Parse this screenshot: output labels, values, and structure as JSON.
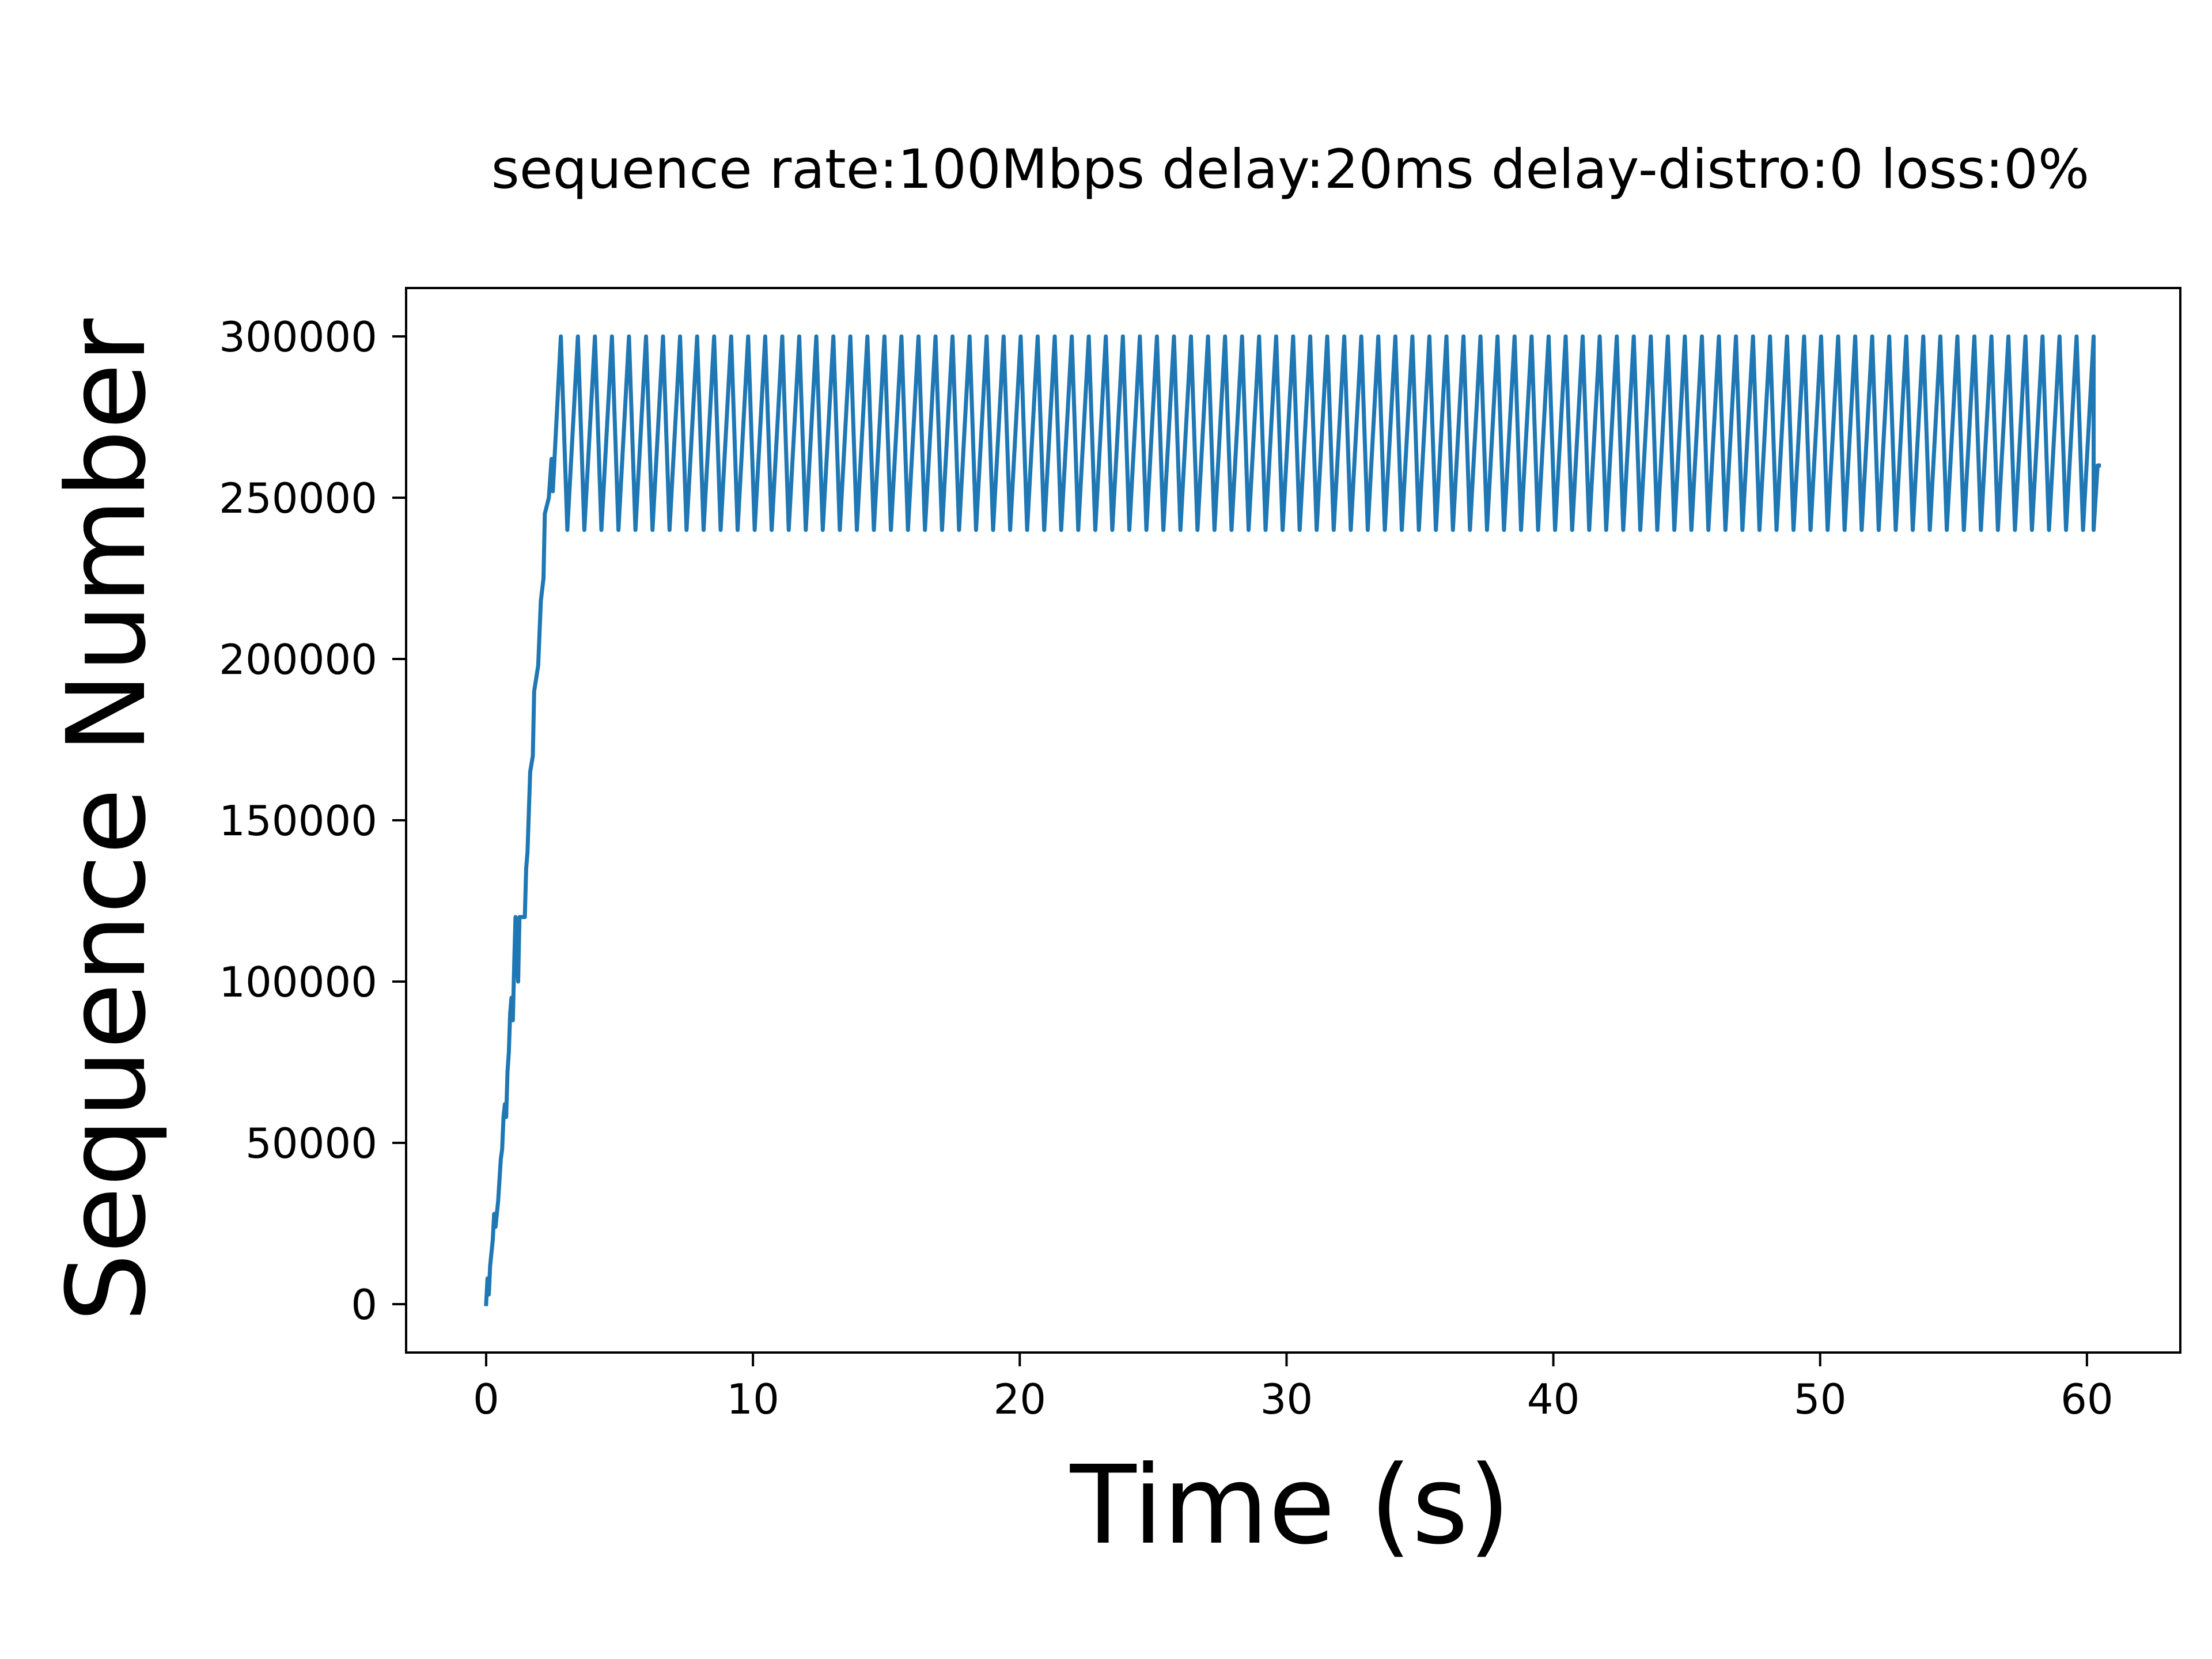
{
  "chart_data": {
    "type": "line",
    "title": "sequence  rate:100Mbps delay:20ms delay-distro:0 loss:0%",
    "xlabel": "Time (s)",
    "ylabel": "Sequence Number",
    "xlim": [
      -3,
      63.5
    ],
    "ylim": [
      -15000,
      315000
    ],
    "x_ticks": [
      0,
      10,
      20,
      30,
      40,
      50,
      60
    ],
    "y_ticks": [
      0,
      50000,
      100000,
      150000,
      200000,
      250000,
      300000
    ],
    "x_tick_labels": [
      "0",
      "10",
      "20",
      "30",
      "40",
      "50",
      "60"
    ],
    "y_tick_labels": [
      "0",
      "50000",
      "100000",
      "150000",
      "200000",
      "250000",
      "300000"
    ],
    "grid": false,
    "legend": "none",
    "series": [
      {
        "color": "#1f77b4",
        "ramp_points": [
          [
            0.0,
            0
          ],
          [
            0.05,
            8000
          ],
          [
            0.1,
            3000
          ],
          [
            0.15,
            12000
          ],
          [
            0.25,
            20000
          ],
          [
            0.3,
            28000
          ],
          [
            0.35,
            24000
          ],
          [
            0.45,
            32000
          ],
          [
            0.55,
            45000
          ],
          [
            0.6,
            48000
          ],
          [
            0.65,
            58000
          ],
          [
            0.7,
            62000
          ],
          [
            0.75,
            58000
          ],
          [
            0.8,
            72000
          ],
          [
            0.85,
            78000
          ],
          [
            0.9,
            90000
          ],
          [
            0.95,
            95000
          ],
          [
            1.0,
            88000
          ],
          [
            1.05,
            105000
          ],
          [
            1.1,
            120000
          ],
          [
            1.2,
            100000
          ],
          [
            1.25,
            120000
          ],
          [
            1.45,
            120000
          ],
          [
            1.5,
            135000
          ],
          [
            1.55,
            140000
          ],
          [
            1.65,
            165000
          ],
          [
            1.75,
            170000
          ],
          [
            1.8,
            190000
          ],
          [
            1.95,
            198000
          ],
          [
            2.05,
            218000
          ],
          [
            2.15,
            225000
          ],
          [
            2.2,
            245000
          ],
          [
            2.35,
            250000
          ],
          [
            2.45,
            262000
          ],
          [
            2.5,
            252000
          ],
          [
            2.8,
            300000
          ]
        ],
        "sawtooth": {
          "start": 2.8,
          "end": 60.25,
          "high": 300000,
          "low": 240000,
          "cycles": 90,
          "drop_fraction": 0.38
        },
        "tail_points": [
          [
            60.25,
            240000
          ],
          [
            60.4,
            260000
          ],
          [
            60.45,
            260000
          ]
        ]
      }
    ]
  }
}
